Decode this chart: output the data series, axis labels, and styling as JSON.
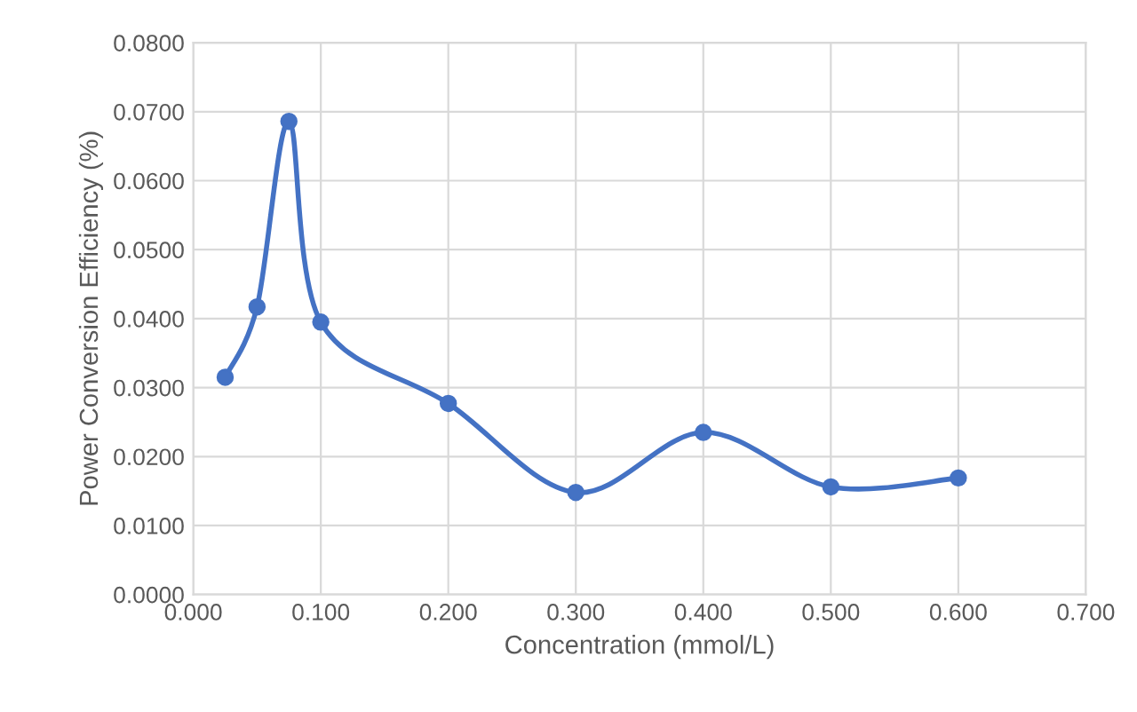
{
  "chart_data": {
    "type": "line",
    "xlabel": "Concentration (mmol/L)",
    "ylabel": "Power Conversion Efficiency (%)",
    "x": [
      0.025,
      0.05,
      0.075,
      0.1,
      0.2,
      0.3,
      0.4,
      0.5,
      0.6
    ],
    "series": [
      {
        "color": "#4472c4",
        "values": [
          0.0315,
          0.0417,
          0.0686,
          0.0395,
          0.0277,
          0.0148,
          0.0235,
          0.0156,
          0.0169
        ]
      }
    ],
    "xlim": [
      0,
      0.7
    ],
    "ylim": [
      0,
      0.08
    ],
    "xticks": [
      {
        "value": 0,
        "label": "0.000"
      },
      {
        "value": 0.1,
        "label": "0.100"
      },
      {
        "value": 0.2,
        "label": "0.200"
      },
      {
        "value": 0.3,
        "label": "0.300"
      },
      {
        "value": 0.4,
        "label": "0.400"
      },
      {
        "value": 0.5,
        "label": "0.500"
      },
      {
        "value": 0.6,
        "label": "0.600"
      },
      {
        "value": 0.7,
        "label": "0.700"
      }
    ],
    "yticks": [
      {
        "value": 0,
        "label": "0.0000"
      },
      {
        "value": 0.01,
        "label": "0.0100"
      },
      {
        "value": 0.02,
        "label": "0.0200"
      },
      {
        "value": 0.03,
        "label": "0.0300"
      },
      {
        "value": 0.04,
        "label": "0.0400"
      },
      {
        "value": 0.05,
        "label": "0.0500"
      },
      {
        "value": 0.06,
        "label": "0.0600"
      },
      {
        "value": 0.07,
        "label": "0.0700"
      },
      {
        "value": 0.08,
        "label": "0.0800"
      }
    ],
    "grid": true,
    "marker": "circle",
    "line_style": "solid"
  }
}
